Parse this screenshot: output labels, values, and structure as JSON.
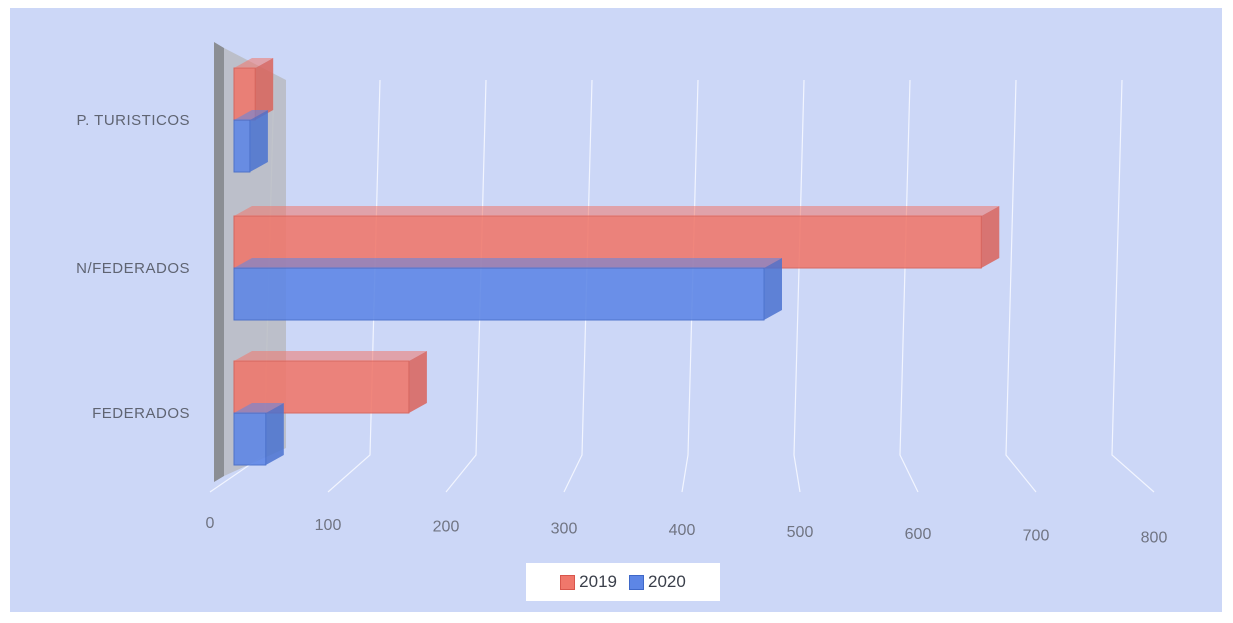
{
  "chart_data": {
    "type": "bar",
    "orientation": "horizontal",
    "style": "3d",
    "categories": [
      "P. TURISTICOS",
      "N/FEDERADOS",
      "FEDERADOS"
    ],
    "series": [
      {
        "name": "2019",
        "color": "#f0776b",
        "values": [
          20,
          705,
          165
        ]
      },
      {
        "name": "2020",
        "color": "#5d86e6",
        "values": [
          15,
          500,
          30
        ]
      }
    ],
    "xlim": [
      0,
      800
    ],
    "xticks": [
      0,
      100,
      200,
      300,
      400,
      500,
      600,
      700,
      800
    ],
    "tick_labels": [
      "0",
      "100",
      "200",
      "300",
      "400",
      "500",
      "600",
      "700",
      "800"
    ],
    "gridlines": true,
    "legend_position": "bottom",
    "background_color": "#ccd7f7",
    "title": "",
    "xlabel": "",
    "ylabel": ""
  }
}
